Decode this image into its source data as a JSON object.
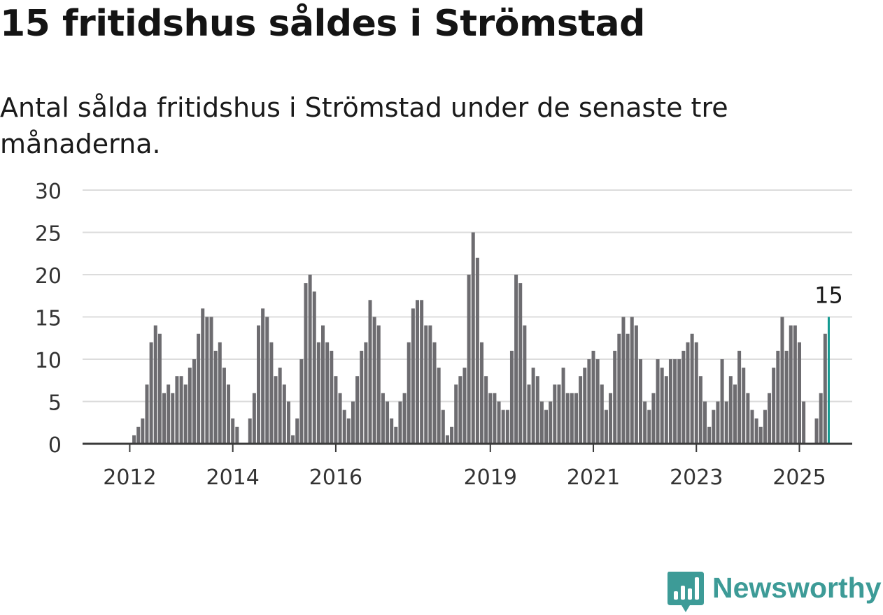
{
  "header": {
    "title": "15 fritidshus såldes i Strömstad",
    "subtitle": "Antal sålda fritidshus i Strömstad under de senaste tre månaderna."
  },
  "brand": {
    "name": "Newsworthy",
    "color": "#3d9b97"
  },
  "colors": {
    "bar": "#6d6c70",
    "highlight": "#139a91",
    "grid": "#dcdcdc",
    "axis": "#3a3a3a",
    "text": "#333333"
  },
  "chart_data": {
    "type": "bar",
    "x_start": "2011-06",
    "x_tick_labels": [
      {
        "label": "2012",
        "month": "2012-01"
      },
      {
        "label": "2014",
        "month": "2014-01"
      },
      {
        "label": "2016",
        "month": "2016-01"
      },
      {
        "label": "2019",
        "month": "2019-01"
      },
      {
        "label": "2021",
        "month": "2021-01"
      },
      {
        "label": "2023",
        "month": "2023-01"
      },
      {
        "label": "2025",
        "month": "2025-01"
      }
    ],
    "y_ticks": [
      0,
      5,
      10,
      15,
      20,
      25,
      30
    ],
    "ylim": [
      0,
      30
    ],
    "grid": true,
    "highlight_label": "15",
    "values": [
      0,
      0,
      0,
      0,
      0,
      0,
      0,
      0,
      1,
      2,
      3,
      7,
      12,
      14,
      13,
      6,
      7,
      6,
      8,
      8,
      7,
      9,
      10,
      13,
      16,
      15,
      15,
      11,
      12,
      9,
      7,
      3,
      2,
      0,
      0,
      3,
      6,
      14,
      16,
      15,
      12,
      8,
      9,
      7,
      5,
      1,
      3,
      10,
      19,
      20,
      18,
      12,
      14,
      12,
      11,
      8,
      6,
      4,
      3,
      5,
      8,
      11,
      12,
      17,
      15,
      14,
      6,
      5,
      3,
      2,
      5,
      6,
      12,
      16,
      17,
      17,
      14,
      14,
      12,
      9,
      4,
      1,
      2,
      7,
      8,
      9,
      20,
      25,
      22,
      12,
      8,
      6,
      6,
      5,
      4,
      4,
      11,
      20,
      19,
      14,
      7,
      9,
      8,
      5,
      4,
      5,
      7,
      7,
      9,
      6,
      6,
      6,
      8,
      9,
      10,
      11,
      10,
      7,
      4,
      6,
      11,
      13,
      15,
      13,
      15,
      14,
      10,
      5,
      4,
      6,
      10,
      9,
      8,
      10,
      10,
      10,
      11,
      12,
      13,
      12,
      8,
      5,
      2,
      4,
      5,
      10,
      5,
      8,
      7,
      11,
      9,
      6,
      4,
      3,
      2,
      4,
      6,
      9,
      11,
      15,
      11,
      14,
      14,
      12,
      5,
      0,
      0,
      3,
      6,
      13,
      15
    ]
  }
}
